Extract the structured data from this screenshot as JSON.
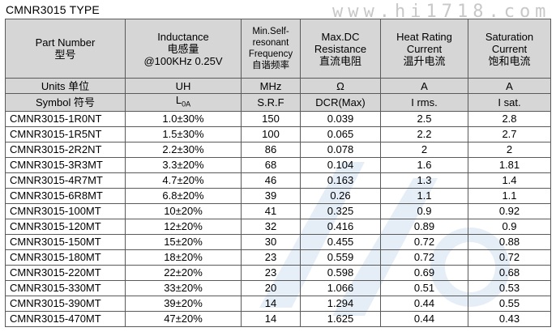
{
  "title": "CMNR3015 TYPE",
  "watermark": "www.hi1718.com",
  "header": {
    "part_number": "Part Number",
    "part_number_cn": "型号",
    "inductance": "Inductance",
    "inductance_cn": "电感量",
    "inductance_cond": "@100KHz 0.25V",
    "srf_l1": "Min.Self-",
    "srf_l2": "resonant",
    "srf_l3": "Frequency",
    "srf_cn": "自谐频率",
    "dcr_l1": "Max.DC",
    "dcr_l2": "Resistance",
    "dcr_cn": "直流电阻",
    "heat_l1": "Heat Rating",
    "heat_l2": "Current",
    "heat_cn": "温升电流",
    "sat_l1": "Saturation",
    "sat_l2": "Current",
    "sat_cn": "饱和电流"
  },
  "units": {
    "label": "Units 单位",
    "inductance": "UH",
    "srf": "MHz",
    "dcr": "Ω",
    "heat": "A",
    "sat": "A"
  },
  "symbols": {
    "label": "Symbol 符号",
    "inductance_main": "L",
    "inductance_sub": "0A",
    "srf": "S.R.F",
    "dcr": "DCR(Max)",
    "heat": "I rms.",
    "sat": "I sat."
  },
  "rows": [
    {
      "part": "CMNR3015-1R0NT",
      "ind": "1.0±30%",
      "srf": "150",
      "dcr": "0.039",
      "heat": "2.5",
      "sat": "2.8"
    },
    {
      "part": "CMNR3015-1R5NT",
      "ind": "1.5±30%",
      "srf": "100",
      "dcr": "0.065",
      "heat": "2.2",
      "sat": "2.7"
    },
    {
      "part": "CMNR3015-2R2NT",
      "ind": "2.2±30%",
      "srf": "86",
      "dcr": "0.078",
      "heat": "2",
      "sat": "2"
    },
    {
      "part": "CMNR3015-3R3MT",
      "ind": "3.3±20%",
      "srf": "68",
      "dcr": "0.104",
      "heat": "1.6",
      "sat": "1.81"
    },
    {
      "part": "CMNR3015-4R7MT",
      "ind": "4.7±20%",
      "srf": "46",
      "dcr": "0.163",
      "heat": "1.3",
      "sat": "1.4"
    },
    {
      "part": "CMNR3015-6R8MT",
      "ind": "6.8±20%",
      "srf": "39",
      "dcr": "0.26",
      "heat": "1.1",
      "sat": "1.1"
    },
    {
      "part": "CMNR3015-100MT",
      "ind": "10±20%",
      "srf": "41",
      "dcr": "0.325",
      "heat": "0.9",
      "sat": "0.92"
    },
    {
      "part": "CMNR3015-120MT",
      "ind": "12±20%",
      "srf": "32",
      "dcr": "0.416",
      "heat": "0.89",
      "sat": "0.9"
    },
    {
      "part": "CMNR3015-150MT",
      "ind": "15±20%",
      "srf": "30",
      "dcr": "0.455",
      "heat": "0.72",
      "sat": "0.88"
    },
    {
      "part": "CMNR3015-180MT",
      "ind": "18±20%",
      "srf": "23",
      "dcr": "0.559",
      "heat": "0.72",
      "sat": "0.72"
    },
    {
      "part": "CMNR3015-220MT",
      "ind": "22±20%",
      "srf": "23",
      "dcr": "0.598",
      "heat": "0.69",
      "sat": "0.68"
    },
    {
      "part": "CMNR3015-330MT",
      "ind": "33±20%",
      "srf": "20",
      "dcr": "1.066",
      "heat": "0.51",
      "sat": "0.53"
    },
    {
      "part": "CMNR3015-390MT",
      "ind": "39±20%",
      "srf": "14",
      "dcr": "1.294",
      "heat": "0.44",
      "sat": "0.55"
    },
    {
      "part": "CMNR3015-470MT",
      "ind": "47±20%",
      "srf": "14",
      "dcr": "1.625",
      "heat": "0.44",
      "sat": "0.43"
    }
  ]
}
